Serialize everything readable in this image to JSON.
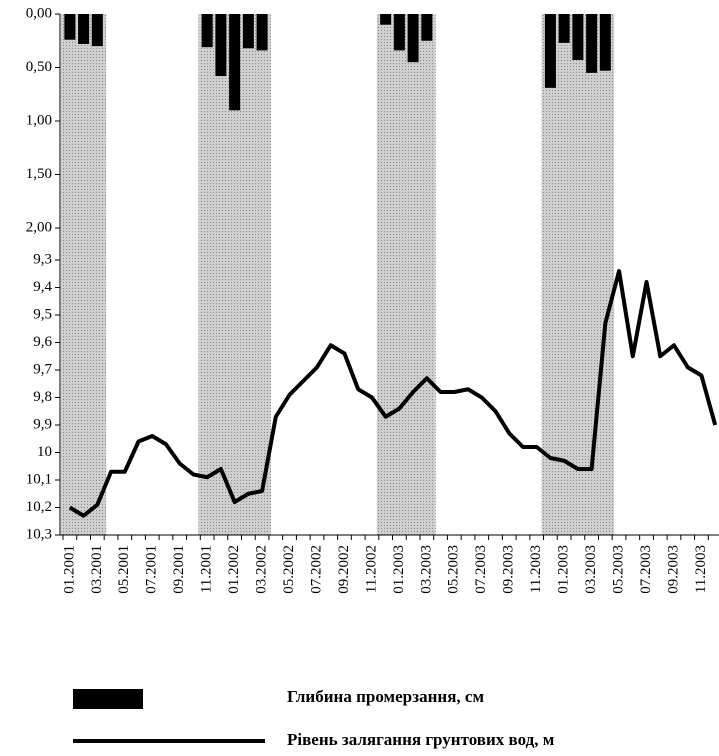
{
  "chart_data": {
    "type": "combo",
    "categories": [
      "01.2001",
      null,
      "03.2001",
      null,
      "05.2001",
      null,
      "07.2001",
      null,
      "09.2001",
      null,
      "11.2001",
      null,
      "01.2002",
      null,
      "03.2002",
      null,
      "05.2002",
      null,
      "07.2002",
      null,
      "09.2002",
      null,
      "11.2002",
      null,
      "01.2003",
      null,
      "03.2003",
      null,
      "05.2003",
      null,
      "07.2003",
      null,
      "09.2003",
      null,
      "11.2003",
      null,
      "01.2003",
      null,
      "03.2003",
      null,
      "05.2003",
      null,
      "07.2003",
      null,
      "09.2003",
      null,
      "11.2003",
      null
    ],
    "series": [
      {
        "name": "Глибина промерзання, см",
        "type": "bar",
        "axis": "y",
        "color": "#000000",
        "values": [
          0.24,
          0.28,
          0.3,
          null,
          null,
          null,
          null,
          null,
          null,
          null,
          0.31,
          0.58,
          0.9,
          0.32,
          0.34,
          null,
          null,
          null,
          null,
          null,
          null,
          null,
          null,
          0.1,
          0.34,
          0.45,
          0.25,
          null,
          null,
          null,
          null,
          null,
          null,
          null,
          null,
          0.69,
          0.27,
          0.43,
          0.55,
          0.53,
          null,
          null,
          null,
          null,
          null,
          null,
          null,
          null
        ]
      },
      {
        "name": "Рівень залягання грунтових вод, м",
        "type": "line",
        "axis": "y2",
        "color": "#000000",
        "values": [
          10.2,
          10.23,
          10.19,
          10.07,
          10.07,
          9.96,
          9.94,
          9.97,
          10.04,
          10.08,
          10.09,
          10.06,
          10.18,
          10.15,
          10.14,
          9.87,
          9.79,
          9.74,
          9.69,
          9.61,
          9.64,
          9.77,
          9.8,
          9.87,
          9.84,
          9.78,
          9.73,
          9.78,
          9.78,
          9.77,
          9.8,
          9.85,
          9.93,
          9.98,
          9.98,
          10.02,
          10.03,
          10.06,
          10.06,
          9.53,
          9.34,
          9.65,
          9.38,
          9.65,
          9.61,
          9.69,
          9.72,
          9.9
        ]
      }
    ],
    "ylim": [
      0,
      2
    ],
    "yticks": [
      {
        "value": 0,
        "label": "0,00"
      },
      {
        "value": 0.5,
        "label": "0,50"
      },
      {
        "value": 1,
        "label": "1,00"
      },
      {
        "value": 1.5,
        "label": "1,50"
      },
      {
        "value": 2,
        "label": "2,00"
      }
    ],
    "y2lim": [
      9.3,
      10.3
    ],
    "y2ticks": [
      {
        "value": 9.3,
        "label": "9,3"
      },
      {
        "value": 9.4,
        "label": "9,4"
      },
      {
        "value": 9.5,
        "label": "9,5"
      },
      {
        "value": 9.6,
        "label": "9,6"
      },
      {
        "value": 9.7,
        "label": "9,7"
      },
      {
        "value": 9.8,
        "label": "9,8"
      },
      {
        "value": 9.9,
        "label": "9,9"
      },
      10,
      {
        "value": 10.1,
        "label": "10,1"
      },
      {
        "value": 10.2,
        "label": "10,2"
      },
      {
        "value": 10.3,
        "label": "10,3"
      }
    ],
    "inverted_axes": true,
    "frost_shading_color": "#cfcfcf"
  }
}
